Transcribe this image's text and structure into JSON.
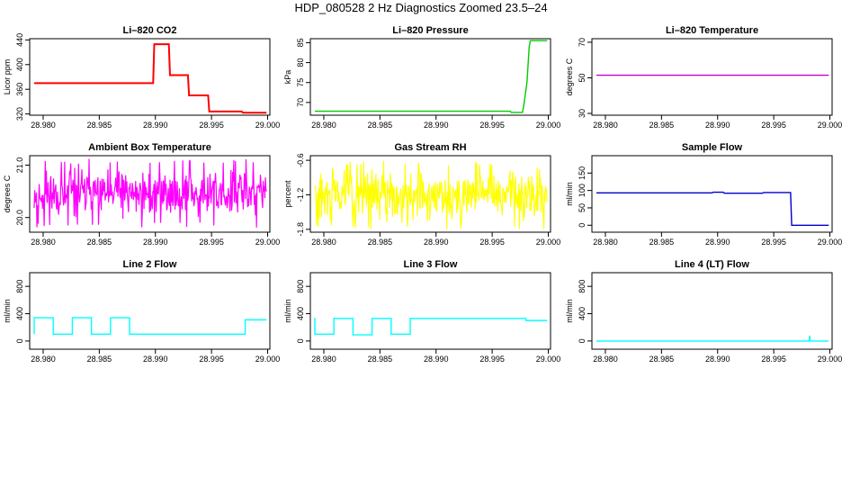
{
  "title": "HDP_080528  2 Hz Diagnostics Zoomed 23.5–24",
  "chart_data": [
    {
      "type": "line",
      "title": "Li–820 CO2",
      "xlabel": "",
      "ylabel": "Licor ppm",
      "xlim": [
        28.9788,
        29.0002
      ],
      "ylim": [
        318,
        442
      ],
      "x_ticks": [
        "28.980",
        "28.985",
        "28.990",
        "28.995",
        "29.000"
      ],
      "x_tick_values": [
        28.98,
        28.985,
        28.99,
        28.995,
        29.0
      ],
      "y_ticks": [
        "320",
        "360",
        "400",
        "440"
      ],
      "y_tick_values": [
        320,
        360,
        400,
        440
      ],
      "color": "#ff0000",
      "style": "steps",
      "series": [
        {
          "x": [
            28.9792,
            28.9898,
            28.9899,
            28.9912,
            28.9913,
            28.9929,
            28.993,
            28.9947,
            28.9948,
            28.9977,
            28.9978,
            28.9999
          ],
          "y": [
            370,
            370,
            433,
            433,
            383,
            383,
            350,
            350,
            324,
            324,
            322,
            322
          ]
        }
      ]
    },
    {
      "type": "line",
      "title": "Li–820 Pressure",
      "xlabel": "",
      "ylabel": "kPa",
      "xlim": [
        28.9788,
        29.0002
      ],
      "ylim": [
        66.8,
        86
      ],
      "x_ticks": [
        "28.980",
        "28.985",
        "28.990",
        "28.995",
        "29.000"
      ],
      "x_tick_values": [
        28.98,
        28.985,
        28.99,
        28.995,
        29.0
      ],
      "y_ticks": [
        "70",
        "75",
        "80",
        "85"
      ],
      "y_tick_values": [
        70,
        75,
        80,
        85
      ],
      "color": "#00cc00",
      "style": "line",
      "series": [
        {
          "x": [
            28.9792,
            28.9966,
            28.9967,
            28.9977,
            28.9978,
            28.9981,
            28.9983,
            28.9984,
            28.9999
          ],
          "y": [
            67.8,
            67.8,
            67.5,
            67.5,
            69,
            75,
            84,
            85.5,
            85.5
          ]
        }
      ]
    },
    {
      "type": "line",
      "title": "Li–820 Temperature",
      "xlabel": "",
      "ylabel": "degrees C",
      "xlim": [
        28.9788,
        29.0002
      ],
      "ylim": [
        29,
        72
      ],
      "x_ticks": [
        "28.980",
        "28.985",
        "28.990",
        "28.995",
        "29.000"
      ],
      "x_tick_values": [
        28.98,
        28.985,
        28.99,
        28.995,
        29.0
      ],
      "y_ticks": [
        "30",
        "50",
        "70"
      ],
      "y_tick_values": [
        30,
        50,
        70
      ],
      "color": "#cc00cc",
      "style": "line",
      "series": [
        {
          "x": [
            28.9792,
            28.9999
          ],
          "y": [
            51.5,
            51.5
          ]
        }
      ]
    },
    {
      "type": "line",
      "title": "Ambient Box Temperature",
      "xlabel": "",
      "ylabel": "degrees C",
      "xlim": [
        28.9788,
        29.0002
      ],
      "ylim": [
        19.72,
        21.18
      ],
      "x_ticks": [
        "28.980",
        "28.985",
        "28.990",
        "28.995",
        "29.000"
      ],
      "x_tick_values": [
        28.98,
        28.985,
        28.99,
        28.995,
        29.0
      ],
      "y_ticks": [
        "20.0",
        "21.0"
      ],
      "y_tick_values": [
        20.0,
        21.0
      ],
      "color": "#ff00ff",
      "style": "noise",
      "noise": {
        "x_start": 28.9792,
        "x_end": 28.9999,
        "mean": 20.42,
        "min": 19.8,
        "max": 21.12,
        "n": 420,
        "seed": 11
      }
    },
    {
      "type": "line",
      "title": "Gas Stream RH",
      "xlabel": "",
      "ylabel": "percent",
      "xlim": [
        28.9788,
        29.0002
      ],
      "ylim": [
        -1.85,
        -0.52
      ],
      "x_ticks": [
        "28.980",
        "28.985",
        "28.990",
        "28.995",
        "29.000"
      ],
      "x_tick_values": [
        28.98,
        28.985,
        28.99,
        28.995,
        29.0
      ],
      "y_ticks": [
        "-1.8",
        "-1.2",
        "-0.6"
      ],
      "y_tick_values": [
        -1.8,
        -1.2,
        -0.6
      ],
      "color": "#ffff00",
      "style": "noise",
      "noise": {
        "x_start": 28.9792,
        "x_end": 28.9999,
        "mean": -1.25,
        "min": -1.8,
        "max": -0.6,
        "n": 420,
        "seed": 29
      }
    },
    {
      "type": "line",
      "title": "Sample Flow",
      "xlabel": "",
      "ylabel": "ml/min",
      "xlim": [
        28.9788,
        29.0002
      ],
      "ylim": [
        -20,
        200
      ],
      "x_ticks": [
        "28.980",
        "28.985",
        "28.990",
        "28.995",
        "29.000"
      ],
      "x_tick_values": [
        28.98,
        28.985,
        28.99,
        28.995,
        29.0
      ],
      "y_ticks": [
        "0",
        "50",
        "100",
        "150"
      ],
      "y_tick_values": [
        0,
        50,
        100,
        150
      ],
      "color": "#0000cc",
      "style": "line",
      "series": [
        {
          "x": [
            28.9792,
            28.9895,
            28.9896,
            28.9905,
            28.9906,
            28.994,
            28.9941,
            28.9965,
            28.9966,
            28.9999
          ],
          "y": [
            93,
            93,
            95,
            95,
            92,
            92,
            94,
            94,
            0,
            0
          ]
        }
      ]
    },
    {
      "type": "line",
      "title": "Line 2 Flow",
      "xlabel": "",
      "ylabel": "ml/min",
      "xlim": [
        28.9788,
        29.0002
      ],
      "ylim": [
        -120,
        1000
      ],
      "x_ticks": [
        "28.980",
        "28.985",
        "28.990",
        "28.995",
        "29.000"
      ],
      "x_tick_values": [
        28.98,
        28.985,
        28.99,
        28.995,
        29.0
      ],
      "y_ticks": [
        "0",
        "400",
        "800"
      ],
      "y_tick_values": [
        0,
        400,
        800
      ],
      "color": "#00ffff",
      "style": "line",
      "series": [
        {
          "x": [
            28.9792,
            28.9792,
            28.9809,
            28.9809,
            28.9826,
            28.9826,
            28.9843,
            28.9843,
            28.986,
            28.986,
            28.9877,
            28.9877,
            28.998,
            28.998,
            28.9999
          ],
          "y": [
            100,
            340,
            340,
            100,
            100,
            340,
            340,
            100,
            100,
            340,
            340,
            100,
            100,
            310,
            310
          ]
        }
      ]
    },
    {
      "type": "line",
      "title": "Line 3 Flow",
      "xlabel": "",
      "ylabel": "ml/min",
      "xlim": [
        28.9788,
        29.0002
      ],
      "ylim": [
        -120,
        1000
      ],
      "x_ticks": [
        "28.980",
        "28.985",
        "28.990",
        "28.995",
        "29.000"
      ],
      "x_tick_values": [
        28.98,
        28.985,
        28.99,
        28.995,
        29.0
      ],
      "y_ticks": [
        "0",
        "400",
        "800"
      ],
      "y_tick_values": [
        0,
        400,
        800
      ],
      "color": "#00ffff",
      "style": "line",
      "series": [
        {
          "x": [
            28.9792,
            28.9792,
            28.9809,
            28.9809,
            28.9826,
            28.9826,
            28.9843,
            28.9843,
            28.986,
            28.986,
            28.9877,
            28.9877,
            28.998,
            28.998,
            28.9999
          ],
          "y": [
            340,
            100,
            100,
            330,
            330,
            90,
            90,
            330,
            330,
            100,
            100,
            330,
            330,
            300,
            300
          ]
        }
      ]
    },
    {
      "type": "line",
      "title": "Line 4 (LT) Flow",
      "xlabel": "",
      "ylabel": "ml/min",
      "xlim": [
        28.9788,
        29.0002
      ],
      "ylim": [
        -120,
        1000
      ],
      "x_ticks": [
        "28.980",
        "28.985",
        "28.990",
        "28.995",
        "29.000"
      ],
      "x_tick_values": [
        28.98,
        28.985,
        28.99,
        28.995,
        29.0
      ],
      "y_ticks": [
        "0",
        "400",
        "800"
      ],
      "y_tick_values": [
        0,
        400,
        800
      ],
      "color": "#00ffff",
      "style": "line",
      "series": [
        {
          "x": [
            28.9792,
            28.99815,
            28.9982,
            28.99825,
            28.9983,
            28.9999
          ],
          "y": [
            0,
            0,
            80,
            0,
            0,
            0
          ]
        }
      ]
    }
  ]
}
